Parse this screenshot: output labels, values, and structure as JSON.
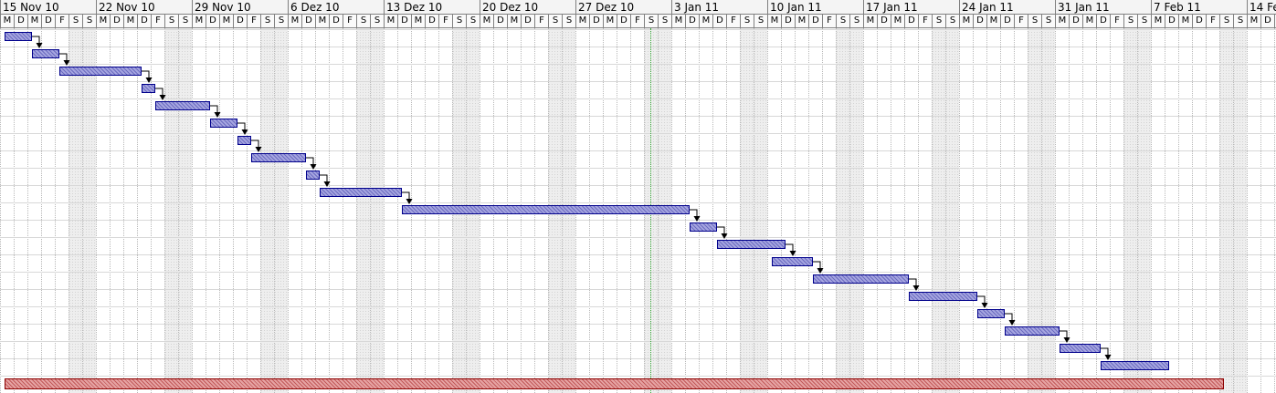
{
  "timeline": {
    "weeks": [
      "15 Nov 10",
      "22 Nov 10",
      "29 Nov 10",
      "6 Dez 10",
      "13 Dez 10",
      "20 Dez 10",
      "27 Dez 10",
      "3 Jan 11",
      "10 Jan 11",
      "17 Jan 11",
      "24 Jan 11",
      "31 Jan 11",
      "7 Feb 11",
      "14 Fe"
    ],
    "day_letters": [
      "M",
      "D",
      "M",
      "D",
      "F",
      "S",
      "S"
    ],
    "start_date": "15 Nov 10",
    "today_marker_date": "1 Jan 11"
  },
  "colors": {
    "task_fill": "#8a8acf",
    "task_border": "#00008b",
    "summary_fill": "#d57a7a",
    "summary_border": "#8b0000",
    "weekend_shade": "#eeeeee",
    "today_line": "#33aa33"
  },
  "tasks": [
    {
      "start": "15 Nov 10",
      "end": "16 Nov 10"
    },
    {
      "start": "17 Nov 10",
      "end": "18 Nov 10"
    },
    {
      "start": "19 Nov 10",
      "end": "24 Nov 10"
    },
    {
      "start": "25 Nov 10",
      "end": "25 Nov 10"
    },
    {
      "start": "26 Nov 10",
      "end": "29 Nov 10"
    },
    {
      "start": "30 Nov 10",
      "end": "1 Dez 10"
    },
    {
      "start": "2 Dez 10",
      "end": "2 Dez 10"
    },
    {
      "start": "3 Dez 10",
      "end": "6 Dez 10"
    },
    {
      "start": "7 Dez 10",
      "end": "7 Dez 10"
    },
    {
      "start": "8 Dez 10",
      "end": "13 Dez 10"
    },
    {
      "start": "14 Dez 10",
      "end": "3 Jan 11"
    },
    {
      "start": "4 Jan 11",
      "end": "5 Jan 11"
    },
    {
      "start": "6 Jan 11",
      "end": "10 Jan 11"
    },
    {
      "start": "10 Jan 11",
      "end": "12 Jan 11"
    },
    {
      "start": "13 Jan 11",
      "end": "19 Jan 11"
    },
    {
      "start": "20 Jan 11",
      "end": "24 Jan 11"
    },
    {
      "start": "25 Jan 11",
      "end": "26 Jan 11"
    },
    {
      "start": "27 Jan 11",
      "end": "30 Jan 11"
    },
    {
      "start": "31 Jan 11",
      "end": "2 Feb 11"
    },
    {
      "start": "3 Feb 11",
      "end": "7 Feb 11"
    }
  ],
  "summary": {
    "start": "15 Nov 10",
    "end": "11 Feb 11"
  }
}
